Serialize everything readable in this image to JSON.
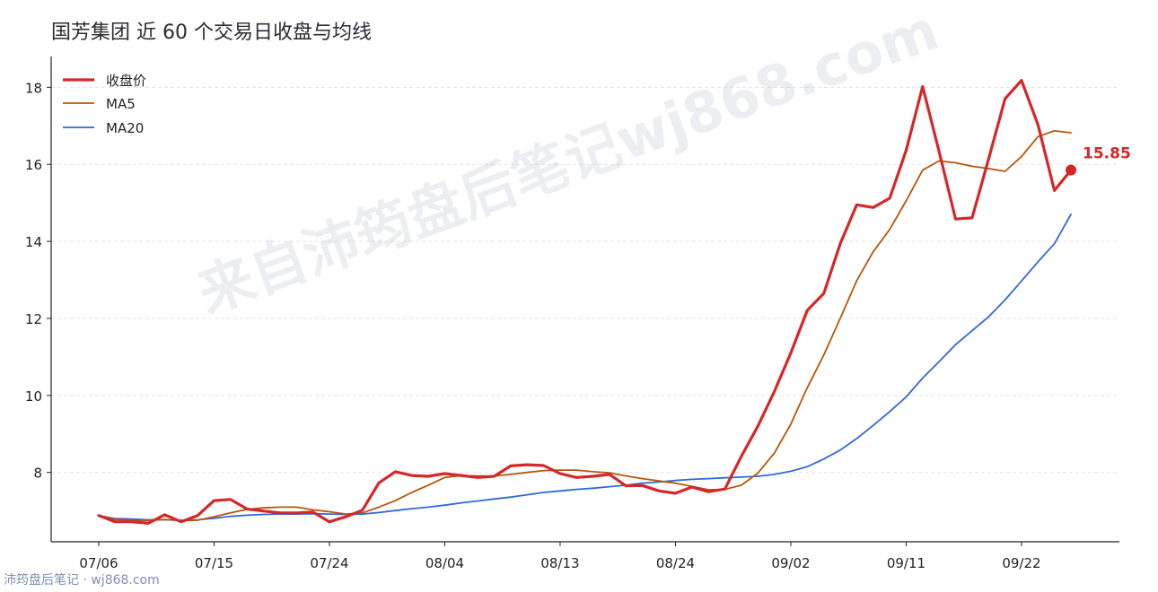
{
  "title": "国芳集团 近 60 个交易日收盘与均线",
  "watermark": "来自沛筠盘后笔记wj868.com",
  "footer": "沛筠盘后笔记 · wj868.com",
  "colors": {
    "close": "#d62728",
    "ma5": "#b8560c",
    "ma20": "#2e6ad8",
    "grid": "#e3e3e3",
    "axis": "#222222"
  },
  "chart_data": {
    "type": "line",
    "x_ticks": [
      "07/06",
      "07/15",
      "07/24",
      "08/04",
      "08/13",
      "08/24",
      "09/02",
      "09/11",
      "09/22"
    ],
    "tick_index": [
      0,
      7,
      14,
      21,
      28,
      35,
      42,
      49,
      56
    ],
    "y_ticks": [
      8,
      10,
      12,
      14,
      16,
      18
    ],
    "ylim": [
      6.2,
      18.8
    ],
    "grid": "horizontal dashed",
    "legend_position": "top-left",
    "last_label": "15.85",
    "series": [
      {
        "name": "收盘价",
        "values": [
          6.88,
          6.72,
          6.72,
          6.68,
          6.9,
          6.72,
          6.88,
          7.27,
          7.3,
          7.05,
          7.0,
          6.95,
          6.95,
          6.97,
          6.72,
          6.85,
          7.02,
          7.73,
          8.02,
          7.92,
          7.9,
          7.97,
          7.92,
          7.87,
          7.9,
          8.17,
          8.2,
          8.18,
          7.97,
          7.87,
          7.9,
          7.95,
          7.65,
          7.66,
          7.52,
          7.46,
          7.62,
          7.5,
          7.57,
          8.42,
          9.2,
          10.1,
          11.1,
          12.21,
          12.65,
          13.94,
          14.95,
          14.88,
          15.12,
          16.36,
          18.02,
          16.33,
          14.58,
          14.61,
          16.13,
          17.7,
          18.18,
          17.03,
          15.32,
          15.85
        ]
      },
      {
        "name": "MA5",
        "values": [
          6.88,
          6.78,
          6.76,
          6.75,
          6.78,
          6.75,
          6.76,
          6.85,
          6.95,
          7.04,
          7.08,
          7.1,
          7.1,
          7.03,
          6.98,
          6.92,
          6.95,
          7.1,
          7.27,
          7.48,
          7.67,
          7.87,
          7.92,
          7.91,
          7.91,
          7.95,
          8.0,
          8.05,
          8.06,
          8.06,
          8.02,
          7.99,
          7.91,
          7.84,
          7.78,
          7.72,
          7.64,
          7.55,
          7.56,
          7.67,
          7.98,
          8.5,
          9.25,
          10.2,
          11.05,
          12.0,
          12.98,
          13.73,
          14.31,
          15.05,
          15.85,
          16.09,
          16.04,
          15.95,
          15.89,
          15.82,
          16.2,
          16.72,
          16.87,
          16.82
        ]
      },
      {
        "name": "MA20",
        "values": [
          6.88,
          6.8,
          6.79,
          6.77,
          6.77,
          6.76,
          6.77,
          6.81,
          6.86,
          6.89,
          6.91,
          6.92,
          6.92,
          6.93,
          6.92,
          6.91,
          6.92,
          6.96,
          7.01,
          7.06,
          7.1,
          7.15,
          7.21,
          7.26,
          7.31,
          7.36,
          7.42,
          7.48,
          7.52,
          7.56,
          7.59,
          7.63,
          7.67,
          7.72,
          7.75,
          7.79,
          7.82,
          7.84,
          7.86,
          7.88,
          7.9,
          7.95,
          8.03,
          8.15,
          8.35,
          8.58,
          8.88,
          9.22,
          9.58,
          9.96,
          10.45,
          10.88,
          11.32,
          11.68,
          12.04,
          12.48,
          12.97,
          13.47,
          13.94,
          14.7
        ]
      }
    ]
  }
}
